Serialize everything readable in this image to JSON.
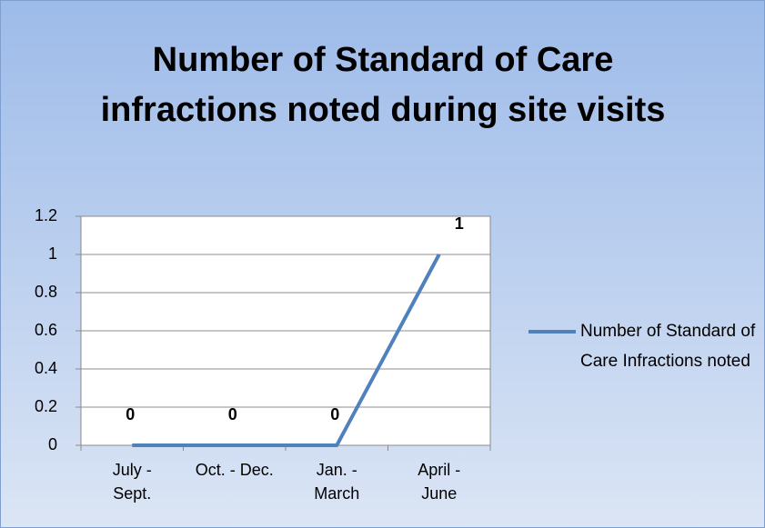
{
  "chart_data": {
    "type": "line",
    "title": "Number of Standard of Care infractions noted during site visits",
    "categories": [
      "July - Sept.",
      "Oct. - Dec.",
      "Jan. - March",
      "April - June"
    ],
    "series": [
      {
        "name": "Number of Standard of Care Infractions noted",
        "color": "#4f81bd",
        "values": [
          0,
          0,
          0,
          1
        ]
      }
    ],
    "ylim": [
      0,
      1.2
    ],
    "yticks": [
      0,
      0.2,
      0.4,
      0.6,
      0.8,
      1,
      1.2
    ],
    "grid": true,
    "legend": "right",
    "data_labels": true
  }
}
